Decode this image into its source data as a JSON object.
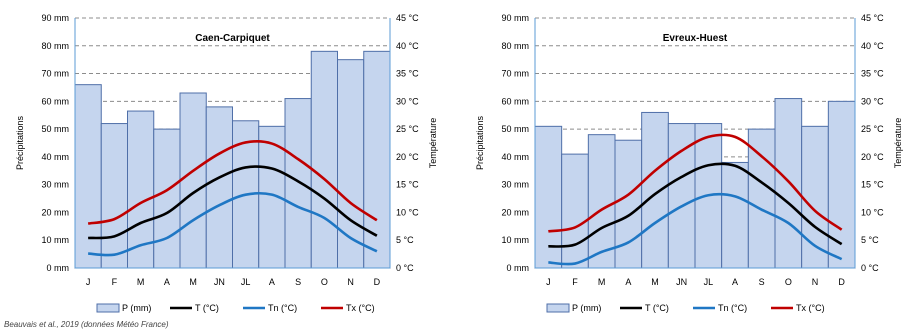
{
  "source_note": "Beauvais et al., 2019 (données Météo France)",
  "chart_data": [
    {
      "type": "bar",
      "title": "Caen-Carpiquet",
      "categories": [
        "J",
        "F",
        "M",
        "A",
        "M",
        "JN",
        "JL",
        "A",
        "S",
        "O",
        "N",
        "D"
      ],
      "ylabel": "Précipitations",
      "y2label": "Température",
      "ylim": [
        0,
        90
      ],
      "y2lim": [
        0,
        45
      ],
      "y_ticks": [
        "0 mm",
        "10 mm",
        "20 mm",
        "30 mm",
        "40 mm",
        "50 mm",
        "60 mm",
        "70 mm",
        "80 mm",
        "90 mm"
      ],
      "y2_ticks": [
        "0 °C",
        "5 °C",
        "10 °C",
        "15 °C",
        "20 °C",
        "25 °C",
        "30 °C",
        "35 °C",
        "40 °C",
        "45 °C"
      ],
      "grid": "dashed",
      "legend_position": "bottom",
      "series": [
        {
          "name": "P (mm)",
          "kind": "bar",
          "axis": "left",
          "color": "#c5d5ee",
          "values": [
            66,
            52,
            56.5,
            50,
            63,
            58,
            53,
            51,
            61,
            78,
            75,
            78
          ]
        },
        {
          "name": "T (°C)",
          "kind": "line",
          "axis": "right",
          "color": "#000000",
          "values": [
            5.4,
            5.7,
            8.1,
            9.9,
            13.5,
            16.3,
            18.1,
            17.9,
            15.6,
            12.5,
            8.6,
            5.8
          ]
        },
        {
          "name": "Tn (°C)",
          "kind": "line",
          "axis": "right",
          "color": "#1f77c4",
          "values": [
            2.6,
            2.4,
            4.1,
            5.4,
            8.6,
            11.3,
            13.2,
            13.2,
            11.0,
            9.0,
            5.4,
            3.0
          ]
        },
        {
          "name": "Tx (°C)",
          "kind": "line",
          "axis": "right",
          "color": "#c00000",
          "values": [
            8.0,
            8.8,
            11.7,
            14.0,
            17.5,
            20.6,
            22.6,
            22.4,
            19.6,
            16.0,
            11.7,
            8.6
          ]
        }
      ]
    },
    {
      "type": "bar",
      "title": "Evreux-Huest",
      "categories": [
        "J",
        "F",
        "M",
        "A",
        "M",
        "JN",
        "JL",
        "A",
        "S",
        "O",
        "N",
        "D"
      ],
      "ylabel": "Précipitations",
      "y2label": "Température",
      "ylim": [
        0,
        90
      ],
      "y2lim": [
        0,
        45
      ],
      "y_ticks": [
        "0 mm",
        "10 mm",
        "20 mm",
        "30 mm",
        "40 mm",
        "50 mm",
        "60 mm",
        "70 mm",
        "80 mm",
        "90 mm"
      ],
      "y2_ticks": [
        "0 °C",
        "5 °C",
        "10 °C",
        "15 °C",
        "20 °C",
        "25 °C",
        "30 °C",
        "35 °C",
        "40 °C",
        "45 °C"
      ],
      "grid": "dashed",
      "legend_position": "bottom",
      "series": [
        {
          "name": "P (mm)",
          "kind": "bar",
          "axis": "left",
          "color": "#c5d5ee",
          "values": [
            51,
            41,
            48,
            46,
            56,
            52,
            52,
            38,
            50,
            61,
            51,
            60
          ]
        },
        {
          "name": "T (°C)",
          "kind": "line",
          "axis": "right",
          "color": "#000000",
          "values": [
            3.9,
            4.2,
            7.2,
            9.4,
            13.3,
            16.4,
            18.5,
            18.4,
            15.4,
            11.7,
            7.4,
            4.3
          ]
        },
        {
          "name": "Tn (°C)",
          "kind": "line",
          "axis": "right",
          "color": "#1f77c4",
          "values": [
            1.0,
            0.8,
            2.9,
            4.6,
            8.1,
            11.1,
            13.1,
            12.9,
            10.5,
            8.1,
            4.0,
            1.6
          ]
        },
        {
          "name": "Tx (°C)",
          "kind": "line",
          "axis": "right",
          "color": "#c00000",
          "values": [
            6.6,
            7.3,
            10.5,
            13.2,
            17.5,
            21.1,
            23.6,
            23.6,
            20.1,
            15.6,
            10.3,
            6.9
          ]
        }
      ]
    }
  ]
}
